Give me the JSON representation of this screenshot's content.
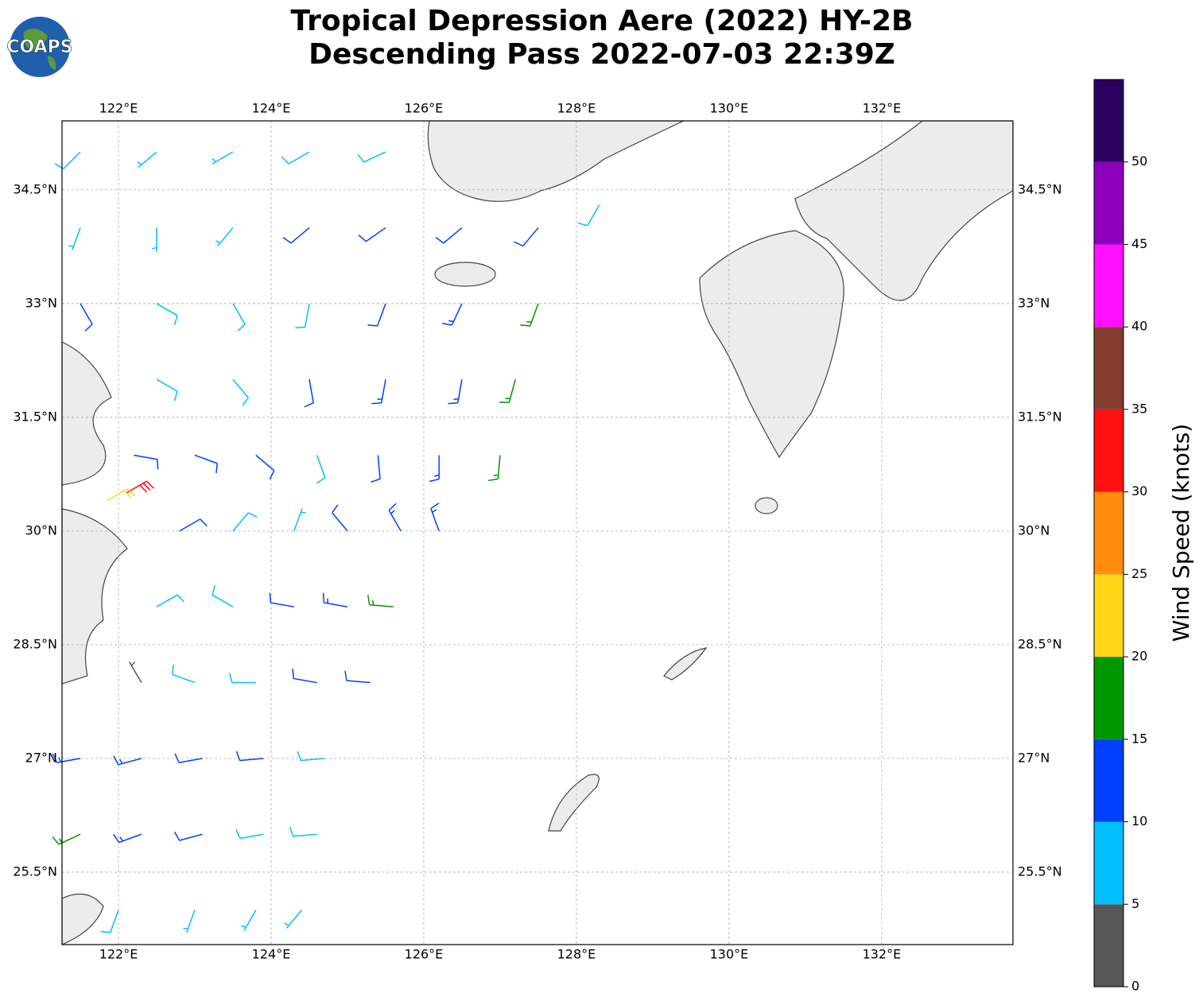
{
  "map": {
    "title": "Tropical Depression Aere (2022) HY-2B",
    "subtitle": "Descending Pass 2022-07-03 22:39Z",
    "logo": "COAPS",
    "xlim": [
      121.26,
      133.72
    ],
    "ylim": [
      24.545,
      35.41
    ],
    "xticks": [
      {
        "value": 122,
        "label": "122°E"
      },
      {
        "value": 124,
        "label": "124°E"
      },
      {
        "value": 126,
        "label": "126°E"
      },
      {
        "value": 128,
        "label": "128°E"
      },
      {
        "value": 130,
        "label": "130°E"
      },
      {
        "value": 132,
        "label": "132°E"
      }
    ],
    "yticks": [
      {
        "value": 25.5,
        "label": "25.5°N"
      },
      {
        "value": 27,
        "label": "27°N"
      },
      {
        "value": 28.5,
        "label": "28.5°N"
      },
      {
        "value": 30,
        "label": "30°N"
      },
      {
        "value": 31.5,
        "label": "31.5°N"
      },
      {
        "value": 33,
        "label": "33°N"
      },
      {
        "value": 34.5,
        "label": "34.5°N"
      }
    ],
    "grid": true,
    "colorbar": {
      "label": "Wind Speed (knots)",
      "bounds": [
        0,
        5,
        10,
        15,
        20,
        25,
        30,
        35,
        40,
        45,
        50,
        55
      ],
      "colors": [
        "#575757",
        "#00bfff",
        "#0040ff",
        "#009600",
        "#ffd514",
        "#ff8c0a",
        "#ff1010",
        "#843c2c",
        "#ff10ff",
        "#8c00bc",
        "#2c0060"
      ],
      "ticks": [
        0,
        5,
        10,
        15,
        20,
        25,
        30,
        35,
        40,
        45,
        50
      ]
    },
    "barbs": [
      {
        "lon": 121.5,
        "lat": 35,
        "speed": 8,
        "dir": 225
      },
      {
        "lon": 122.5,
        "lat": 35,
        "speed": 7,
        "dir": 230
      },
      {
        "lon": 123.5,
        "lat": 35,
        "speed": 7,
        "dir": 240
      },
      {
        "lon": 124.5,
        "lat": 35,
        "speed": 8,
        "dir": 240
      },
      {
        "lon": 125.5,
        "lat": 35,
        "speed": 8,
        "dir": 245
      },
      {
        "lon": 121.5,
        "lat": 34,
        "speed": 6,
        "dir": 200
      },
      {
        "lon": 122.5,
        "lat": 34,
        "speed": 5,
        "dir": 180
      },
      {
        "lon": 123.5,
        "lat": 34,
        "speed": 7,
        "dir": 220
      },
      {
        "lon": 124.5,
        "lat": 34,
        "speed": 11,
        "dir": 230
      },
      {
        "lon": 125.5,
        "lat": 34,
        "speed": 12,
        "dir": 235
      },
      {
        "lon": 126.5,
        "lat": 34,
        "speed": 12,
        "dir": 230
      },
      {
        "lon": 127.5,
        "lat": 34,
        "speed": 11,
        "dir": 220
      },
      {
        "lon": 128.3,
        "lat": 34.3,
        "speed": 8,
        "dir": 210
      },
      {
        "lon": 121.5,
        "lat": 33,
        "speed": 11,
        "dir": 150
      },
      {
        "lon": 122.5,
        "lat": 33,
        "speed": 8,
        "dir": 120
      },
      {
        "lon": 123.5,
        "lat": 33,
        "speed": 8,
        "dir": 150
      },
      {
        "lon": 124.5,
        "lat": 33,
        "speed": 9,
        "dir": 190
      },
      {
        "lon": 125.5,
        "lat": 33,
        "speed": 12,
        "dir": 200
      },
      {
        "lon": 126.5,
        "lat": 33,
        "speed": 13,
        "dir": 205
      },
      {
        "lon": 127.5,
        "lat": 33,
        "speed": 17,
        "dir": 200
      },
      {
        "lon": 122.5,
        "lat": 32,
        "speed": 8,
        "dir": 120
      },
      {
        "lon": 123.5,
        "lat": 32,
        "speed": 9,
        "dir": 140
      },
      {
        "lon": 124.5,
        "lat": 32,
        "speed": 11,
        "dir": 170
      },
      {
        "lon": 125.5,
        "lat": 32,
        "speed": 14,
        "dir": 190
      },
      {
        "lon": 126.5,
        "lat": 32,
        "speed": 13,
        "dir": 190
      },
      {
        "lon": 127.2,
        "lat": 32,
        "speed": 17,
        "dir": 195
      },
      {
        "lon": 122.2,
        "lat": 31,
        "speed": 11,
        "dir": 100
      },
      {
        "lon": 123.0,
        "lat": 31,
        "speed": 12,
        "dir": 110
      },
      {
        "lon": 123.8,
        "lat": 31,
        "speed": 10,
        "dir": 130
      },
      {
        "lon": 124.6,
        "lat": 31,
        "speed": 9,
        "dir": 160
      },
      {
        "lon": 125.4,
        "lat": 31,
        "speed": 11,
        "dir": 175
      },
      {
        "lon": 126.2,
        "lat": 31,
        "speed": 13,
        "dir": 180
      },
      {
        "lon": 127.0,
        "lat": 31,
        "speed": 17,
        "dir": 185
      },
      {
        "lon": 122.1,
        "lat": 30.5,
        "speed": 32,
        "dir": 60
      },
      {
        "lon": 121.85,
        "lat": 30.4,
        "speed": 22,
        "dir": 60
      },
      {
        "lon": 122.8,
        "lat": 30,
        "speed": 12,
        "dir": 60
      },
      {
        "lon": 123.5,
        "lat": 30,
        "speed": 8,
        "dir": 40
      },
      {
        "lon": 124.3,
        "lat": 30,
        "speed": 7,
        "dir": 20
      },
      {
        "lon": 125.0,
        "lat": 30,
        "speed": 11,
        "dir": 320
      },
      {
        "lon": 125.7,
        "lat": 30,
        "speed": 13,
        "dir": 330
      },
      {
        "lon": 126.2,
        "lat": 30,
        "speed": 14,
        "dir": 340
      },
      {
        "lon": 122.5,
        "lat": 29,
        "speed": 8,
        "dir": 60
      },
      {
        "lon": 123.5,
        "lat": 29,
        "speed": 9,
        "dir": 300
      },
      {
        "lon": 124.3,
        "lat": 29,
        "speed": 12,
        "dir": 280
      },
      {
        "lon": 125.0,
        "lat": 29,
        "speed": 13,
        "dir": 280
      },
      {
        "lon": 125.6,
        "lat": 29,
        "speed": 17,
        "dir": 275
      },
      {
        "lon": 122.3,
        "lat": 28,
        "speed": 4,
        "dir": 330
      },
      {
        "lon": 123.0,
        "lat": 28,
        "speed": 8,
        "dir": 290
      },
      {
        "lon": 123.8,
        "lat": 28,
        "speed": 9,
        "dir": 270
      },
      {
        "lon": 124.6,
        "lat": 28,
        "speed": 12,
        "dir": 280
      },
      {
        "lon": 125.3,
        "lat": 28,
        "speed": 11,
        "dir": 275
      },
      {
        "lon": 121.5,
        "lat": 27,
        "speed": 14,
        "dir": 260
      },
      {
        "lon": 122.3,
        "lat": 27,
        "speed": 13,
        "dir": 255
      },
      {
        "lon": 123.1,
        "lat": 27,
        "speed": 12,
        "dir": 260
      },
      {
        "lon": 123.9,
        "lat": 27,
        "speed": 11,
        "dir": 265
      },
      {
        "lon": 124.7,
        "lat": 27,
        "speed": 9,
        "dir": 265
      },
      {
        "lon": 121.5,
        "lat": 26,
        "speed": 17,
        "dir": 245
      },
      {
        "lon": 122.3,
        "lat": 26,
        "speed": 14,
        "dir": 250
      },
      {
        "lon": 123.1,
        "lat": 26,
        "speed": 11,
        "dir": 255
      },
      {
        "lon": 123.9,
        "lat": 26,
        "speed": 9,
        "dir": 260
      },
      {
        "lon": 124.6,
        "lat": 26,
        "speed": 8,
        "dir": 265
      },
      {
        "lon": 122.0,
        "lat": 25,
        "speed": 8,
        "dir": 200
      },
      {
        "lon": 123.0,
        "lat": 25,
        "speed": 7,
        "dir": 200
      },
      {
        "lon": 123.8,
        "lat": 25,
        "speed": 7,
        "dir": 210
      },
      {
        "lon": 124.4,
        "lat": 25,
        "speed": 6,
        "dir": 220
      }
    ]
  }
}
